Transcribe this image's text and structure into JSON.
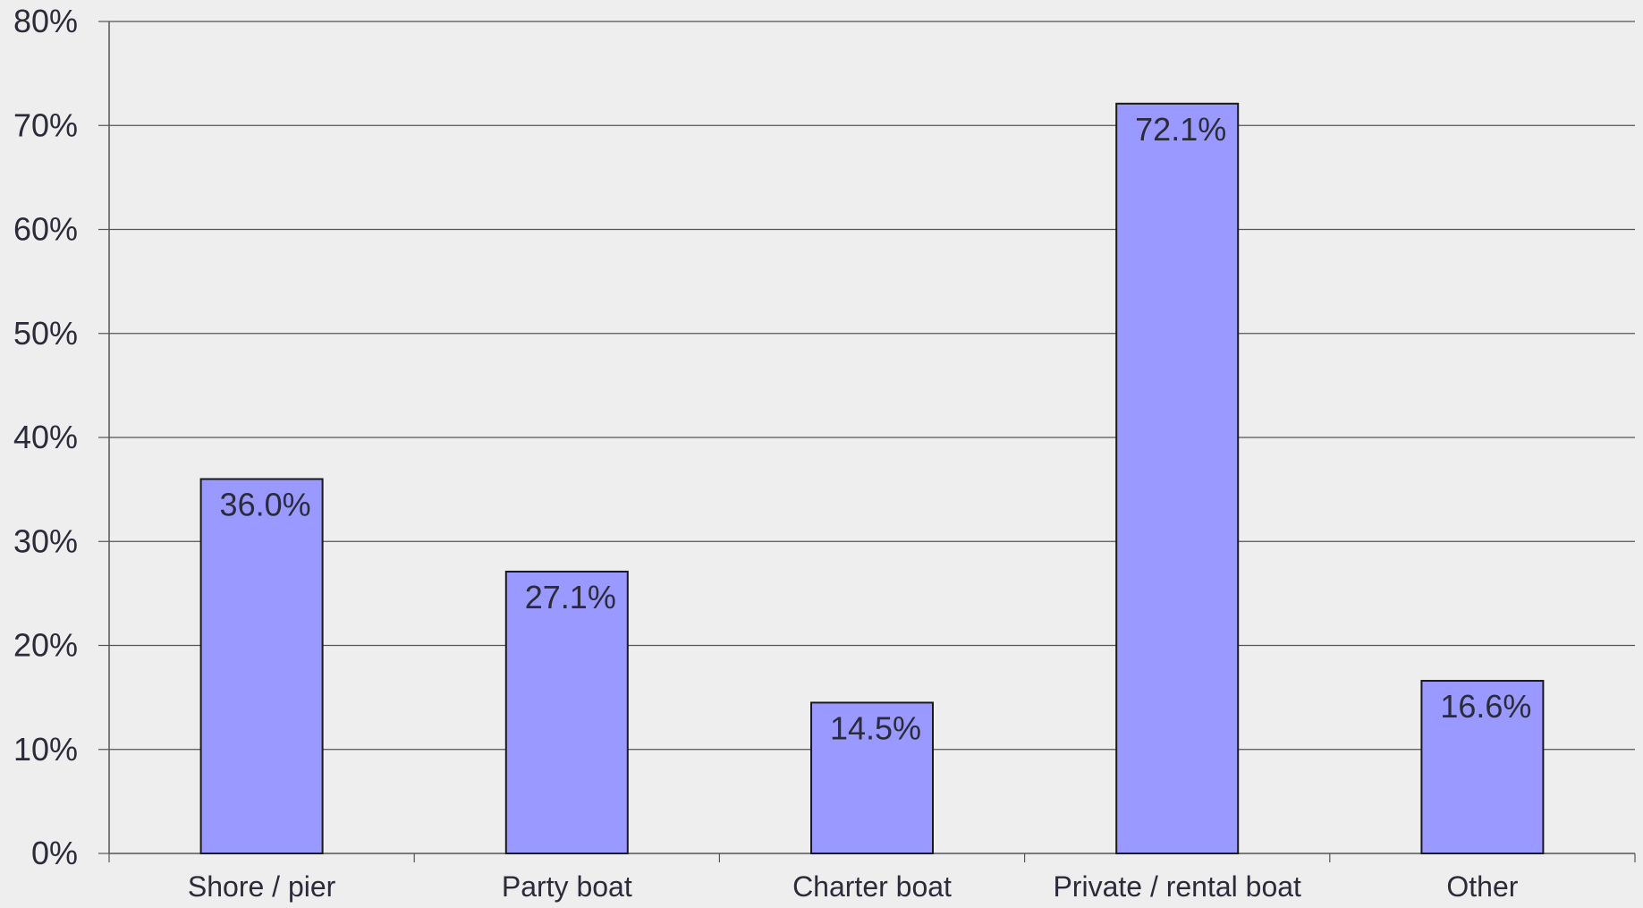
{
  "chart_data": {
    "type": "bar",
    "title": "",
    "xlabel": "",
    "ylabel": "",
    "categories": [
      "Shore / pier",
      "Party boat",
      "Charter boat",
      "Private / rental boat",
      "Other"
    ],
    "series": [
      {
        "values": [
          36.0,
          27.1,
          14.5,
          72.1,
          16.6
        ],
        "data_labels": [
          "36.0%",
          "27.1%",
          "14.5%",
          "72.1%",
          "16.6%"
        ]
      }
    ],
    "ylim": [
      0,
      80
    ],
    "yticks": [
      0,
      10,
      20,
      30,
      40,
      50,
      60,
      70,
      80
    ],
    "ytick_labels": [
      "0%",
      "10%",
      "20%",
      "30%",
      "40%",
      "50%",
      "60%",
      "70%",
      "80%"
    ],
    "grid": true,
    "legend": "none",
    "colors": {
      "bar_fill": "#9999ff",
      "bar_stroke": "#1a1a1a",
      "grid": "#555555",
      "background": "#eeeeee",
      "text": "#2b2b3a"
    }
  }
}
